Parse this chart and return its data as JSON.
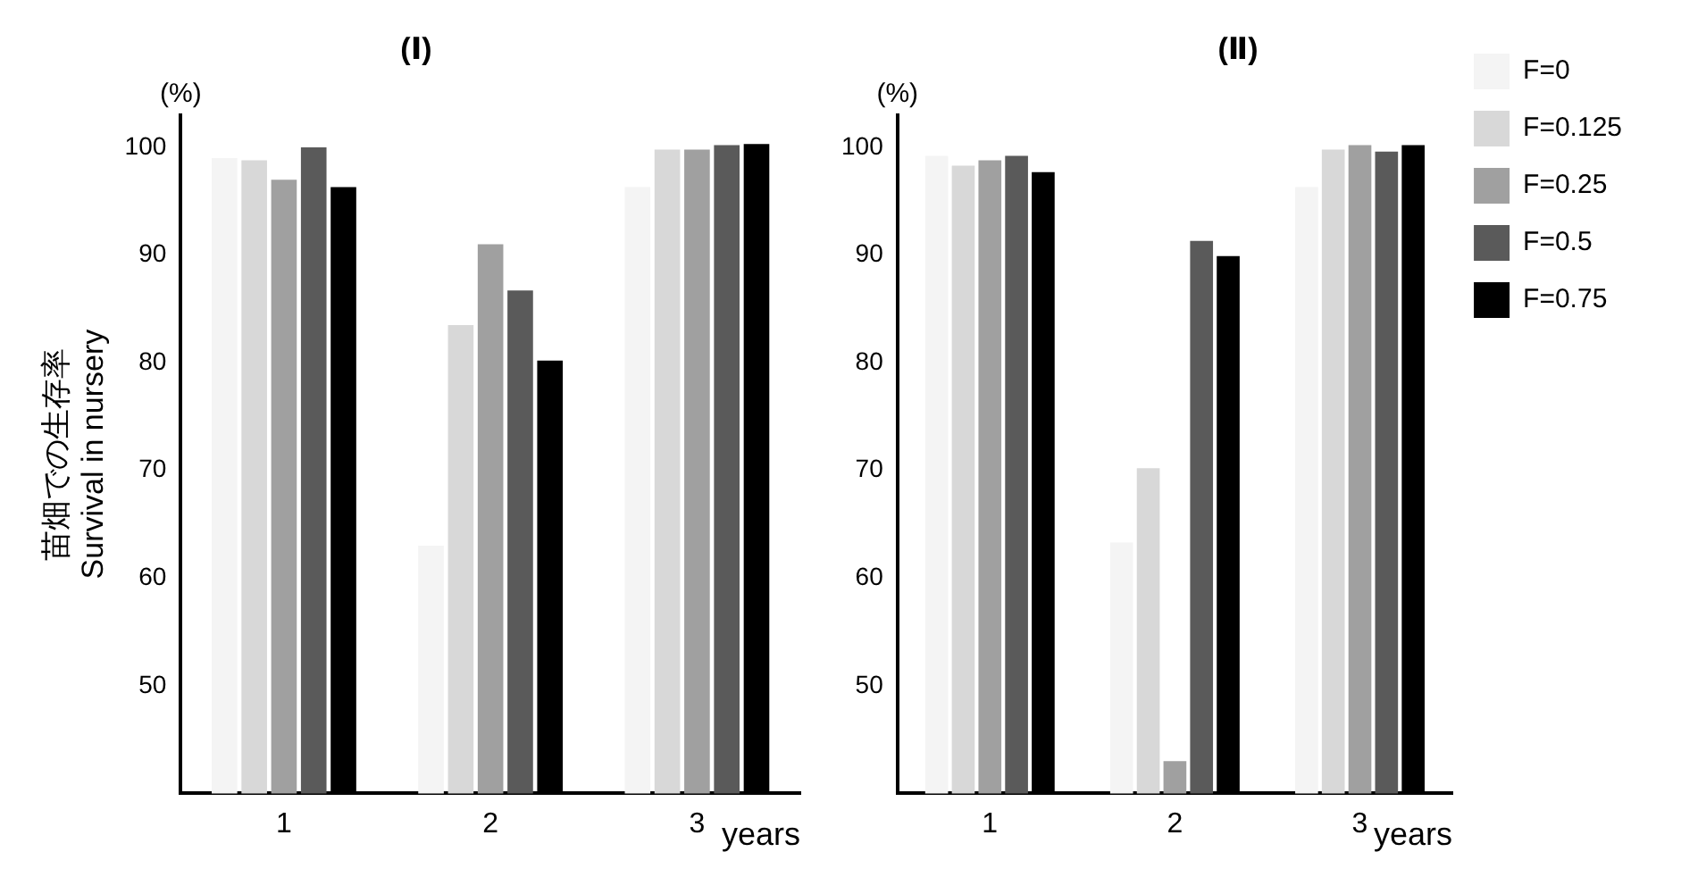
{
  "chart_data": [
    {
      "type": "bar",
      "title": "(Ⅰ)",
      "ylabel": "苗畑での生存率\nSurvival in nursery",
      "xlabel": "years",
      "annotations": [
        "(%)"
      ],
      "categories": [
        "1",
        "2",
        "3"
      ],
      "ylim": [
        40,
        103
      ],
      "yticks": [
        50,
        60,
        70,
        80,
        90,
        100
      ],
      "grid": false,
      "legend": false,
      "series": [
        {
          "color": "#f4f4f4",
          "values": [
            99,
            63,
            96.3
          ]
        },
        {
          "color": "#d8d8d8",
          "values": [
            98.8,
            83.5,
            99.8
          ]
        },
        {
          "color": "#a0a0a0",
          "values": [
            97,
            91,
            99.8
          ]
        },
        {
          "color": "#5a5a5a",
          "values": [
            100,
            86.7,
            100.2
          ]
        },
        {
          "color": "#000000",
          "values": [
            96.3,
            80.2,
            100.3
          ]
        }
      ]
    },
    {
      "type": "bar",
      "title": "(Ⅱ)",
      "xlabel": "years",
      "annotations": [
        "(%)"
      ],
      "categories": [
        "1",
        "2",
        "3"
      ],
      "ylim": [
        40,
        103
      ],
      "yticks": [
        50,
        60,
        70,
        80,
        90,
        100
      ],
      "grid": false,
      "legend": "top right",
      "series": [
        {
          "name": "F=0",
          "color": "#f4f4f4",
          "values": [
            99.2,
            63.3,
            96.3
          ]
        },
        {
          "name": "F=0.125",
          "color": "#d8d8d8",
          "values": [
            98.3,
            70.2,
            99.8
          ]
        },
        {
          "name": "F=0.25",
          "color": "#a0a0a0",
          "values": [
            98.8,
            43,
            100.2
          ]
        },
        {
          "name": "F=0.5",
          "color": "#5a5a5a",
          "values": [
            99.2,
            91.3,
            99.6
          ]
        },
        {
          "name": "F=0.75",
          "color": "#000000",
          "values": [
            97.7,
            89.9,
            100.2
          ]
        }
      ]
    }
  ]
}
